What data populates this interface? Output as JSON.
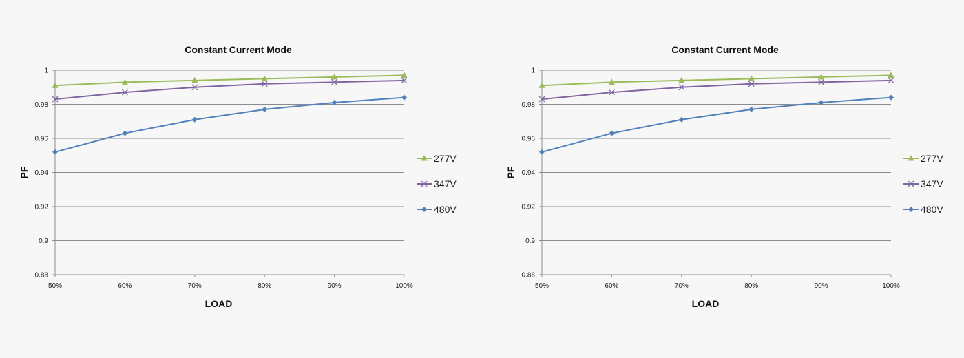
{
  "chart_data": [
    {
      "type": "line",
      "title": "Constant Current Mode",
      "xlabel": "LOAD",
      "ylabel": "PF",
      "categories": [
        "50%",
        "60%",
        "70%",
        "80%",
        "90%",
        "100%"
      ],
      "ylim": [
        0.88,
        1.0
      ],
      "yticks": [
        "0.88",
        "0.9",
        "0.92",
        "0.94",
        "0.96",
        "0.98",
        "1"
      ],
      "grid": true,
      "legend_position": "right",
      "series": [
        {
          "name": "277V",
          "color": "#9bbb59",
          "marker": "triangle",
          "values": [
            0.991,
            0.993,
            0.994,
            0.995,
            0.996,
            0.997
          ]
        },
        {
          "name": "347V",
          "color": "#8064a2",
          "marker": "x",
          "values": [
            0.983,
            0.987,
            0.99,
            0.992,
            0.993,
            0.994
          ]
        },
        {
          "name": "480V",
          "color": "#4f81bd",
          "marker": "diamond",
          "values": [
            0.952,
            0.963,
            0.971,
            0.977,
            0.981,
            0.984
          ]
        }
      ]
    },
    {
      "type": "line",
      "title": "Constant Current Mode",
      "xlabel": "LOAD",
      "ylabel": "PF",
      "categories": [
        "50%",
        "60%",
        "70%",
        "80%",
        "90%",
        "100%"
      ],
      "ylim": [
        0.88,
        1.0
      ],
      "yticks": [
        "0.88",
        "0.9",
        "0.92",
        "0.94",
        "0.96",
        "0.98",
        "1"
      ],
      "grid": true,
      "legend_position": "right",
      "series": [
        {
          "name": "277V",
          "color": "#9bbb59",
          "marker": "triangle",
          "values": [
            0.991,
            0.993,
            0.994,
            0.995,
            0.996,
            0.997
          ]
        },
        {
          "name": "347V",
          "color": "#8064a2",
          "marker": "x",
          "values": [
            0.983,
            0.987,
            0.99,
            0.992,
            0.993,
            0.994
          ]
        },
        {
          "name": "480V",
          "color": "#4f81bd",
          "marker": "diamond",
          "values": [
            0.952,
            0.963,
            0.971,
            0.977,
            0.981,
            0.984
          ]
        }
      ]
    }
  ]
}
